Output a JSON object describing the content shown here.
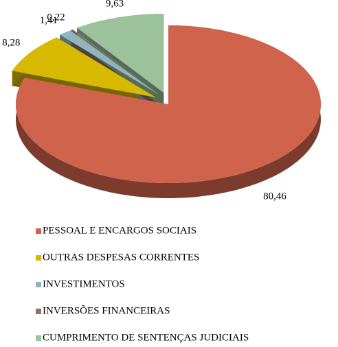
{
  "chart_data": {
    "type": "pie",
    "categories": [
      "PESSOAL E ENCARGOS SOCIAIS",
      "OUTRAS DESPESAS CORRENTES",
      "INVESTIMENTOS",
      "INVERSÕES FINANCEIRAS",
      "CUMPRIMENTO DE SENTENÇAS JUDICIAIS"
    ],
    "values": [
      80.46,
      8.28,
      1.41,
      0.22,
      9.63
    ],
    "value_labels": [
      "80,46",
      "8,28",
      "1,41",
      "0,22",
      "9,63"
    ],
    "colors": [
      "#d0634c",
      "#d6b900",
      "#8fb6bd",
      "#8a7670",
      "#9cc29b"
    ],
    "legend": "bottom"
  }
}
